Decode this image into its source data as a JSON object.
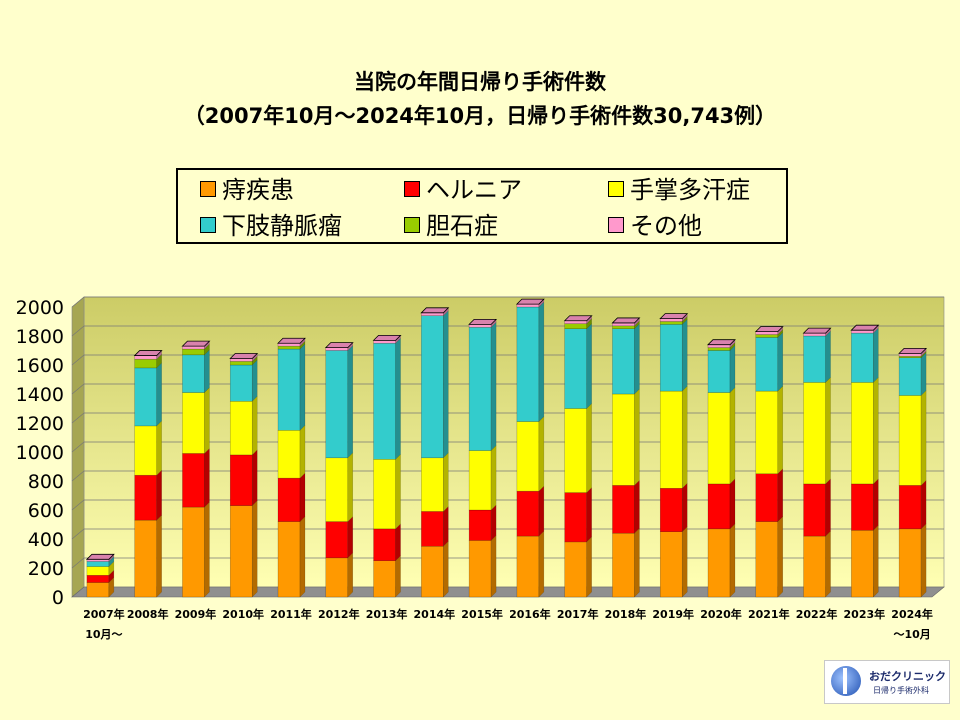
{
  "title": "当院の年間日帰り手術件数",
  "subtitle": "（2007年10月～2024年10月，日帰り手術件数30,743例）",
  "legend_items": [
    {
      "label": "痔疾患",
      "color": "#FF9900"
    },
    {
      "label": "ヘルニア",
      "color": "#FF0000"
    },
    {
      "label": "手掌多汗症",
      "color": "#FFFF00"
    },
    {
      "label": "下肢静脈瘤",
      "color": "#33CCCC"
    },
    {
      "label": "胆石症",
      "color": "#99CC00"
    },
    {
      "label": "その他",
      "color": "#FF99CC"
    }
  ],
  "chart_data": {
    "type": "bar",
    "stacked": true,
    "categories": [
      "2007年\n10月～",
      "2008年",
      "2009年",
      "2010年",
      "2011年",
      "2012年",
      "2013年",
      "2014年",
      "2015年",
      "2016年",
      "2017年",
      "2018年",
      "2019年",
      "2020年",
      "2021年",
      "2022年",
      "2023年",
      "2024年\n～10月"
    ],
    "series": [
      {
        "name": "痔疾患",
        "color": "#FF9900",
        "values": [
          100,
          530,
          620,
          630,
          520,
          270,
          250,
          350,
          390,
          420,
          380,
          440,
          450,
          470,
          520,
          420,
          460,
          470
        ]
      },
      {
        "name": "ヘルニア",
        "color": "#FF0000",
        "values": [
          50,
          310,
          370,
          350,
          300,
          250,
          220,
          240,
          210,
          310,
          340,
          330,
          300,
          310,
          330,
          360,
          320,
          300
        ]
      },
      {
        "name": "手掌多汗症",
        "color": "#FFFF00",
        "values": [
          60,
          340,
          420,
          370,
          330,
          440,
          480,
          370,
          410,
          480,
          580,
          630,
          670,
          630,
          570,
          700,
          700,
          620
        ]
      },
      {
        "name": "下肢静脈瘤",
        "color": "#33CCCC",
        "values": [
          35,
          400,
          260,
          250,
          560,
          740,
          800,
          980,
          850,
          790,
          550,
          450,
          460,
          290,
          370,
          320,
          340,
          260
        ]
      },
      {
        "name": "胆石症",
        "color": "#99CC00",
        "values": [
          0,
          60,
          40,
          25,
          20,
          0,
          0,
          0,
          0,
          0,
          35,
          20,
          20,
          20,
          20,
          0,
          0,
          10
        ]
      },
      {
        "name": "その他",
        "color": "#FF99CC",
        "values": [
          15,
          25,
          20,
          20,
          20,
          20,
          20,
          20,
          20,
          20,
          20,
          20,
          20,
          20,
          20,
          20,
          20,
          20
        ]
      }
    ],
    "ylim": [
      0,
      2000
    ],
    "yticks": [
      0,
      200,
      400,
      600,
      800,
      1000,
      1200,
      1400,
      1600,
      1800,
      2000
    ],
    "grid": true
  },
  "logo": {
    "name": "おだクリニック",
    "subtitle": "日帰り手術外科"
  }
}
